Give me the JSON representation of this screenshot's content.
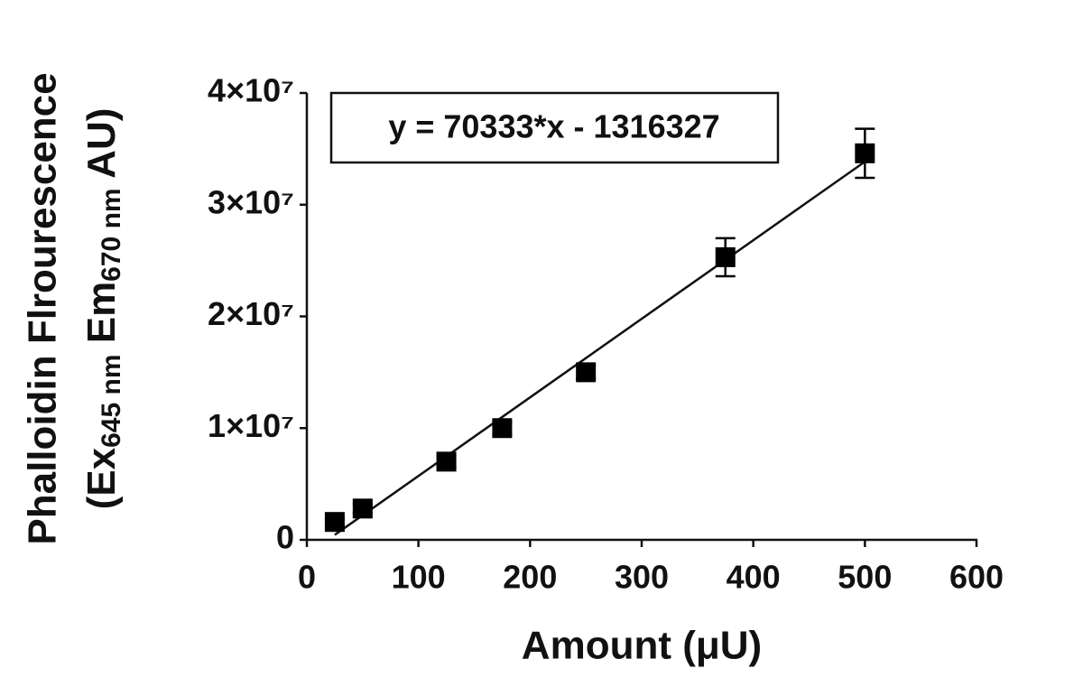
{
  "chart_data": {
    "type": "scatter",
    "x": [
      25,
      50,
      125,
      175,
      250,
      375,
      500
    ],
    "values": [
      1600000,
      2800000,
      7000000,
      10000000,
      15000000,
      25300000,
      34600000
    ],
    "errors": [
      300000,
      400000,
      500000,
      500000,
      600000,
      1700000,
      2200000
    ],
    "color": "#000000",
    "xlim": [
      0,
      600
    ],
    "xticks": [
      0,
      100,
      200,
      300,
      400,
      500,
      600
    ],
    "ylim": [
      0,
      40000000
    ],
    "yticks": [
      0,
      {
        "value": 10000000,
        "label": "1×10⁷"
      },
      {
        "value": 20000000,
        "label": "2×10⁷"
      },
      {
        "value": 30000000,
        "label": "3×10⁷"
      },
      {
        "value": 40000000,
        "label": "4×10⁷"
      }
    ],
    "xlabel": "Amount (μU)",
    "ylabel": {
      "line1": "Phalloidin Flrourescence",
      "line2": [
        "(Ex",
        "645 nm",
        " Em",
        "670 nm",
        " AU)"
      ]
    },
    "fit": {
      "slope": 70333,
      "intercept": -1316327,
      "label": "y = 70333*x - 1316327"
    },
    "grid": false
  }
}
